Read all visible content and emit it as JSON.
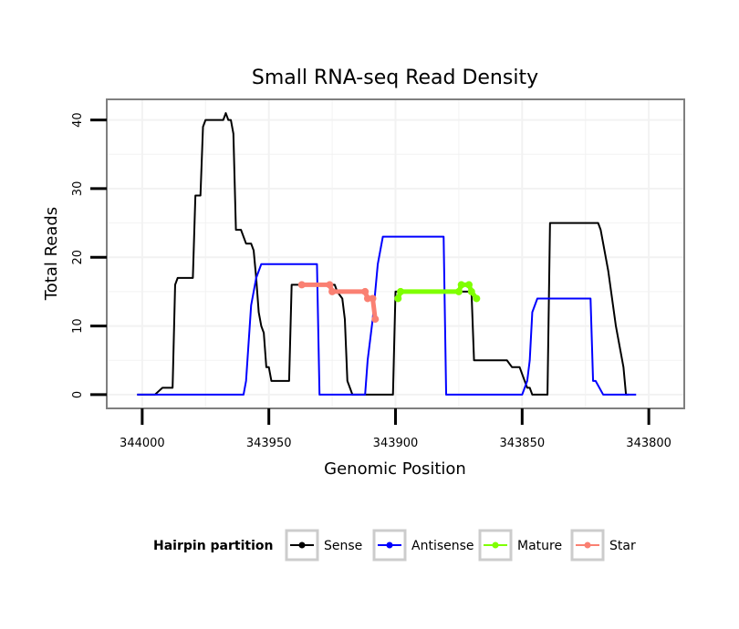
{
  "chart_data": {
    "type": "line",
    "title": "Small RNA-seq Read Density",
    "xlabel": "Genomic Position",
    "ylabel": "Total Reads",
    "xlim": [
      344014,
      343786
    ],
    "x_reversed": true,
    "ylim": [
      -2,
      43
    ],
    "x_ticks": [
      344000,
      343950,
      343900,
      343850,
      343800
    ],
    "y_ticks": [
      0,
      10,
      20,
      30,
      40
    ],
    "grid": true,
    "legend": {
      "title": "Hairpin partition",
      "position": "bottom"
    },
    "series": [
      {
        "name": "Sense",
        "color": "#000000",
        "points": [
          [
            344002,
            0
          ],
          [
            343995,
            0
          ],
          [
            343992,
            1
          ],
          [
            343988,
            1
          ],
          [
            343987,
            16
          ],
          [
            343986,
            17
          ],
          [
            343980,
            17
          ],
          [
            343979,
            29
          ],
          [
            343977,
            29
          ],
          [
            343976,
            39
          ],
          [
            343975,
            40
          ],
          [
            343968,
            40
          ],
          [
            343967,
            41
          ],
          [
            343966,
            40
          ],
          [
            343965,
            40
          ],
          [
            343964,
            38
          ],
          [
            343963,
            24
          ],
          [
            343961,
            24
          ],
          [
            343959,
            22
          ],
          [
            343957,
            22
          ],
          [
            343956,
            21
          ],
          [
            343955,
            17
          ],
          [
            343954,
            12
          ],
          [
            343953,
            10
          ],
          [
            343952,
            9
          ],
          [
            343951,
            4
          ],
          [
            343950,
            4
          ],
          [
            343949,
            2
          ],
          [
            343946,
            2
          ],
          [
            343942,
            2
          ],
          [
            343941,
            16
          ],
          [
            343924,
            16
          ],
          [
            343923,
            15
          ],
          [
            343921,
            14
          ],
          [
            343920,
            11
          ],
          [
            343919,
            2
          ],
          [
            343918,
            1
          ],
          [
            343917,
            0
          ],
          [
            343901,
            0
          ],
          [
            343900,
            15
          ],
          [
            343870,
            15
          ],
          [
            343869,
            5
          ],
          [
            343856,
            5
          ],
          [
            343854,
            4
          ],
          [
            343851,
            4
          ],
          [
            343848,
            1
          ],
          [
            343847,
            1
          ],
          [
            343846,
            0
          ],
          [
            343840,
            0
          ],
          [
            343839,
            25
          ],
          [
            343820,
            25
          ],
          [
            343819,
            24
          ],
          [
            343818,
            22
          ],
          [
            343816,
            18
          ],
          [
            343813,
            10
          ],
          [
            343811,
            6
          ],
          [
            343810,
            4
          ],
          [
            343809,
            0
          ],
          [
            343808,
            0
          ]
        ]
      },
      {
        "name": "Antisense",
        "color": "#0000ff",
        "points": [
          [
            344002,
            0
          ],
          [
            343960,
            0
          ],
          [
            343959,
            2
          ],
          [
            343957,
            13
          ],
          [
            343955,
            17
          ],
          [
            343953,
            19
          ],
          [
            343931,
            19
          ],
          [
            343930,
            0
          ],
          [
            343912,
            0
          ],
          [
            343911,
            5
          ],
          [
            343909,
            11
          ],
          [
            343907,
            19
          ],
          [
            343905,
            23
          ],
          [
            343902,
            23
          ],
          [
            343881,
            23
          ],
          [
            343880,
            0
          ],
          [
            343850,
            0
          ],
          [
            343848,
            2
          ],
          [
            343847,
            5
          ],
          [
            343846,
            12
          ],
          [
            343844,
            14
          ],
          [
            343823,
            14
          ],
          [
            343822,
            2
          ],
          [
            343821,
            2
          ],
          [
            343818,
            0
          ],
          [
            343805,
            0
          ]
        ]
      },
      {
        "name": "Mature",
        "color": "#7fff00",
        "points": [
          [
            343899,
            14
          ],
          [
            343898,
            15
          ],
          [
            343875,
            15
          ],
          [
            343874,
            16
          ],
          [
            343871,
            16
          ],
          [
            343870,
            15
          ],
          [
            343868,
            14
          ]
        ]
      },
      {
        "name": "Star",
        "color": "#fa8072",
        "points": [
          [
            343937,
            16
          ],
          [
            343926,
            16
          ],
          [
            343925,
            15
          ],
          [
            343912,
            15
          ],
          [
            343911,
            14
          ],
          [
            343909,
            14
          ],
          [
            343908,
            11
          ]
        ]
      }
    ]
  }
}
